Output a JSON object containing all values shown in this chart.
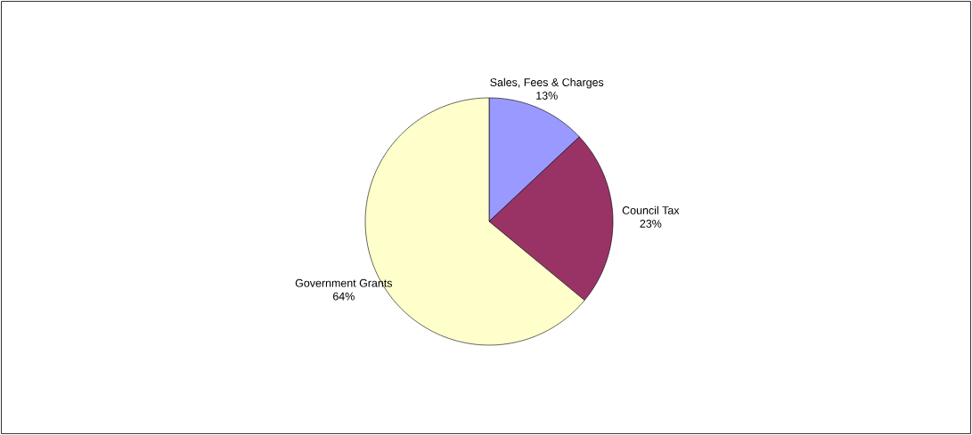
{
  "chart_data": {
    "type": "pie",
    "categories": [
      "Sales, Fees & Charges",
      "Council Tax",
      "Government Grants"
    ],
    "values": [
      13,
      23,
      64
    ],
    "colors": [
      "#9999ff",
      "#993366",
      "#ffffcc"
    ],
    "value_labels": [
      "13%",
      "23%",
      "64%"
    ]
  }
}
